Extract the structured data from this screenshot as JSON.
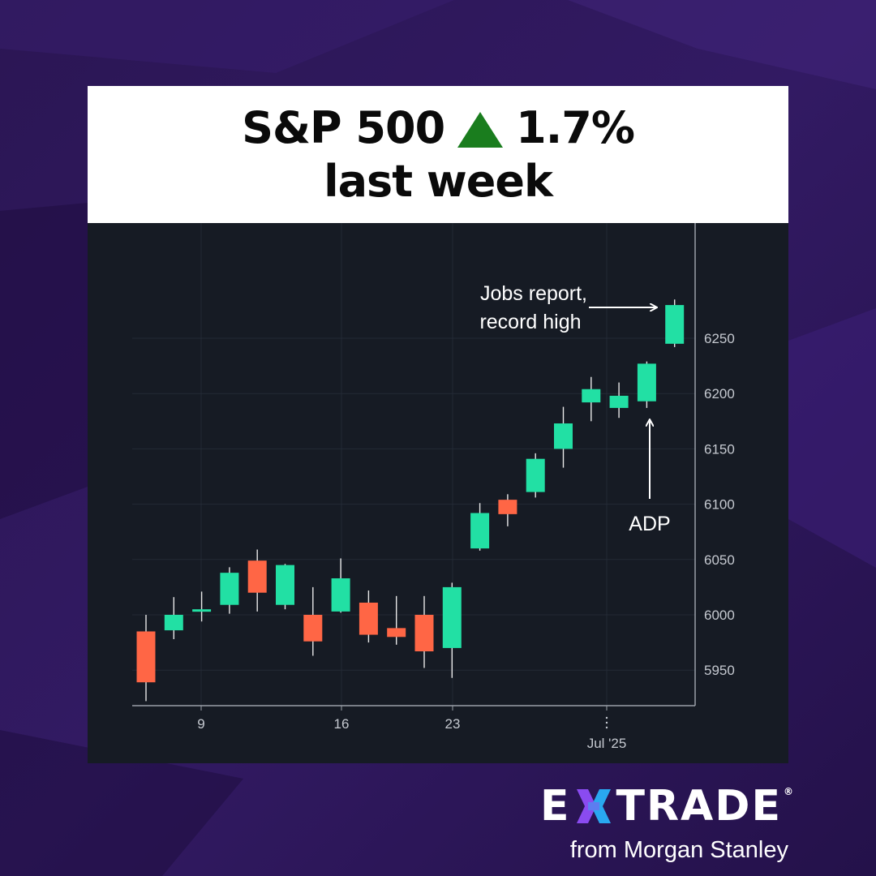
{
  "header": {
    "line1_label": "S&P 500",
    "line1_change": "1.7%",
    "line1_direction": "up",
    "line2": "last week"
  },
  "chart_data": {
    "type": "candlestick",
    "x_tick_labels": [
      "9",
      "16",
      "23",
      "Jul '25"
    ],
    "y_tick_labels": [
      "5950",
      "6000",
      "6050",
      "6100",
      "6150",
      "6200",
      "6250"
    ],
    "ylim": [
      5917,
      6330
    ],
    "grid": true,
    "axis_position": "right",
    "candles": [
      {
        "open": 5985,
        "high": 6000,
        "low": 5922,
        "close": 5939
      },
      {
        "open": 5986,
        "high": 6016,
        "low": 5978,
        "close": 6000
      },
      {
        "open": 6003,
        "high": 6021,
        "low": 5994,
        "close": 6005
      },
      {
        "open": 6009,
        "high": 6043,
        "low": 6001,
        "close": 6038
      },
      {
        "open": 6049,
        "high": 6059,
        "low": 6003,
        "close": 6020
      },
      {
        "open": 6009,
        "high": 6046,
        "low": 6005,
        "close": 6045
      },
      {
        "open": 6000,
        "high": 6025,
        "low": 5963,
        "close": 5976
      },
      {
        "open": 6003,
        "high": 6051,
        "low": 6002,
        "close": 6033
      },
      {
        "open": 6011,
        "high": 6022,
        "low": 5975,
        "close": 5982
      },
      {
        "open": 5988,
        "high": 6017,
        "low": 5973,
        "close": 5980
      },
      {
        "open": 6000,
        "high": 6017,
        "low": 5952,
        "close": 5967
      },
      {
        "open": 5970,
        "high": 6029,
        "low": 5943,
        "close": 6025
      },
      {
        "open": 6060,
        "high": 6101,
        "low": 6058,
        "close": 6092
      },
      {
        "open": 6104,
        "high": 6109,
        "low": 6080,
        "close": 6091
      },
      {
        "open": 6111,
        "high": 6146,
        "low": 6106,
        "close": 6141
      },
      {
        "open": 6150,
        "high": 6188,
        "low": 6133,
        "close": 6173
      },
      {
        "open": 6192,
        "high": 6215,
        "low": 6175,
        "close": 6204
      },
      {
        "open": 6187,
        "high": 6210,
        "low": 6178,
        "close": 6198
      },
      {
        "open": 6193,
        "high": 6229,
        "low": 6187,
        "close": 6227
      },
      {
        "open": 6245,
        "high": 6285,
        "low": 6242,
        "close": 6280
      }
    ],
    "annotations": [
      {
        "text_lines": [
          "Jobs report,",
          "record high"
        ],
        "points_to_candle": 19
      },
      {
        "text_lines": [
          "ADP"
        ],
        "points_to_candle": 18
      }
    ],
    "colors": {
      "up": "#22e0a4",
      "down": "#ff6645",
      "background": "#161b24",
      "axis": "#9aa0a8",
      "grid": "#232a35"
    }
  },
  "brand": {
    "wordmark_left": "E",
    "wordmark_right": "TRADE",
    "registered": "®",
    "tagline": "from Morgan Stanley",
    "icon": "etrade-x-icon",
    "colors": {
      "x_left": "#8a4bf0",
      "x_right": "#29a8f0"
    }
  }
}
